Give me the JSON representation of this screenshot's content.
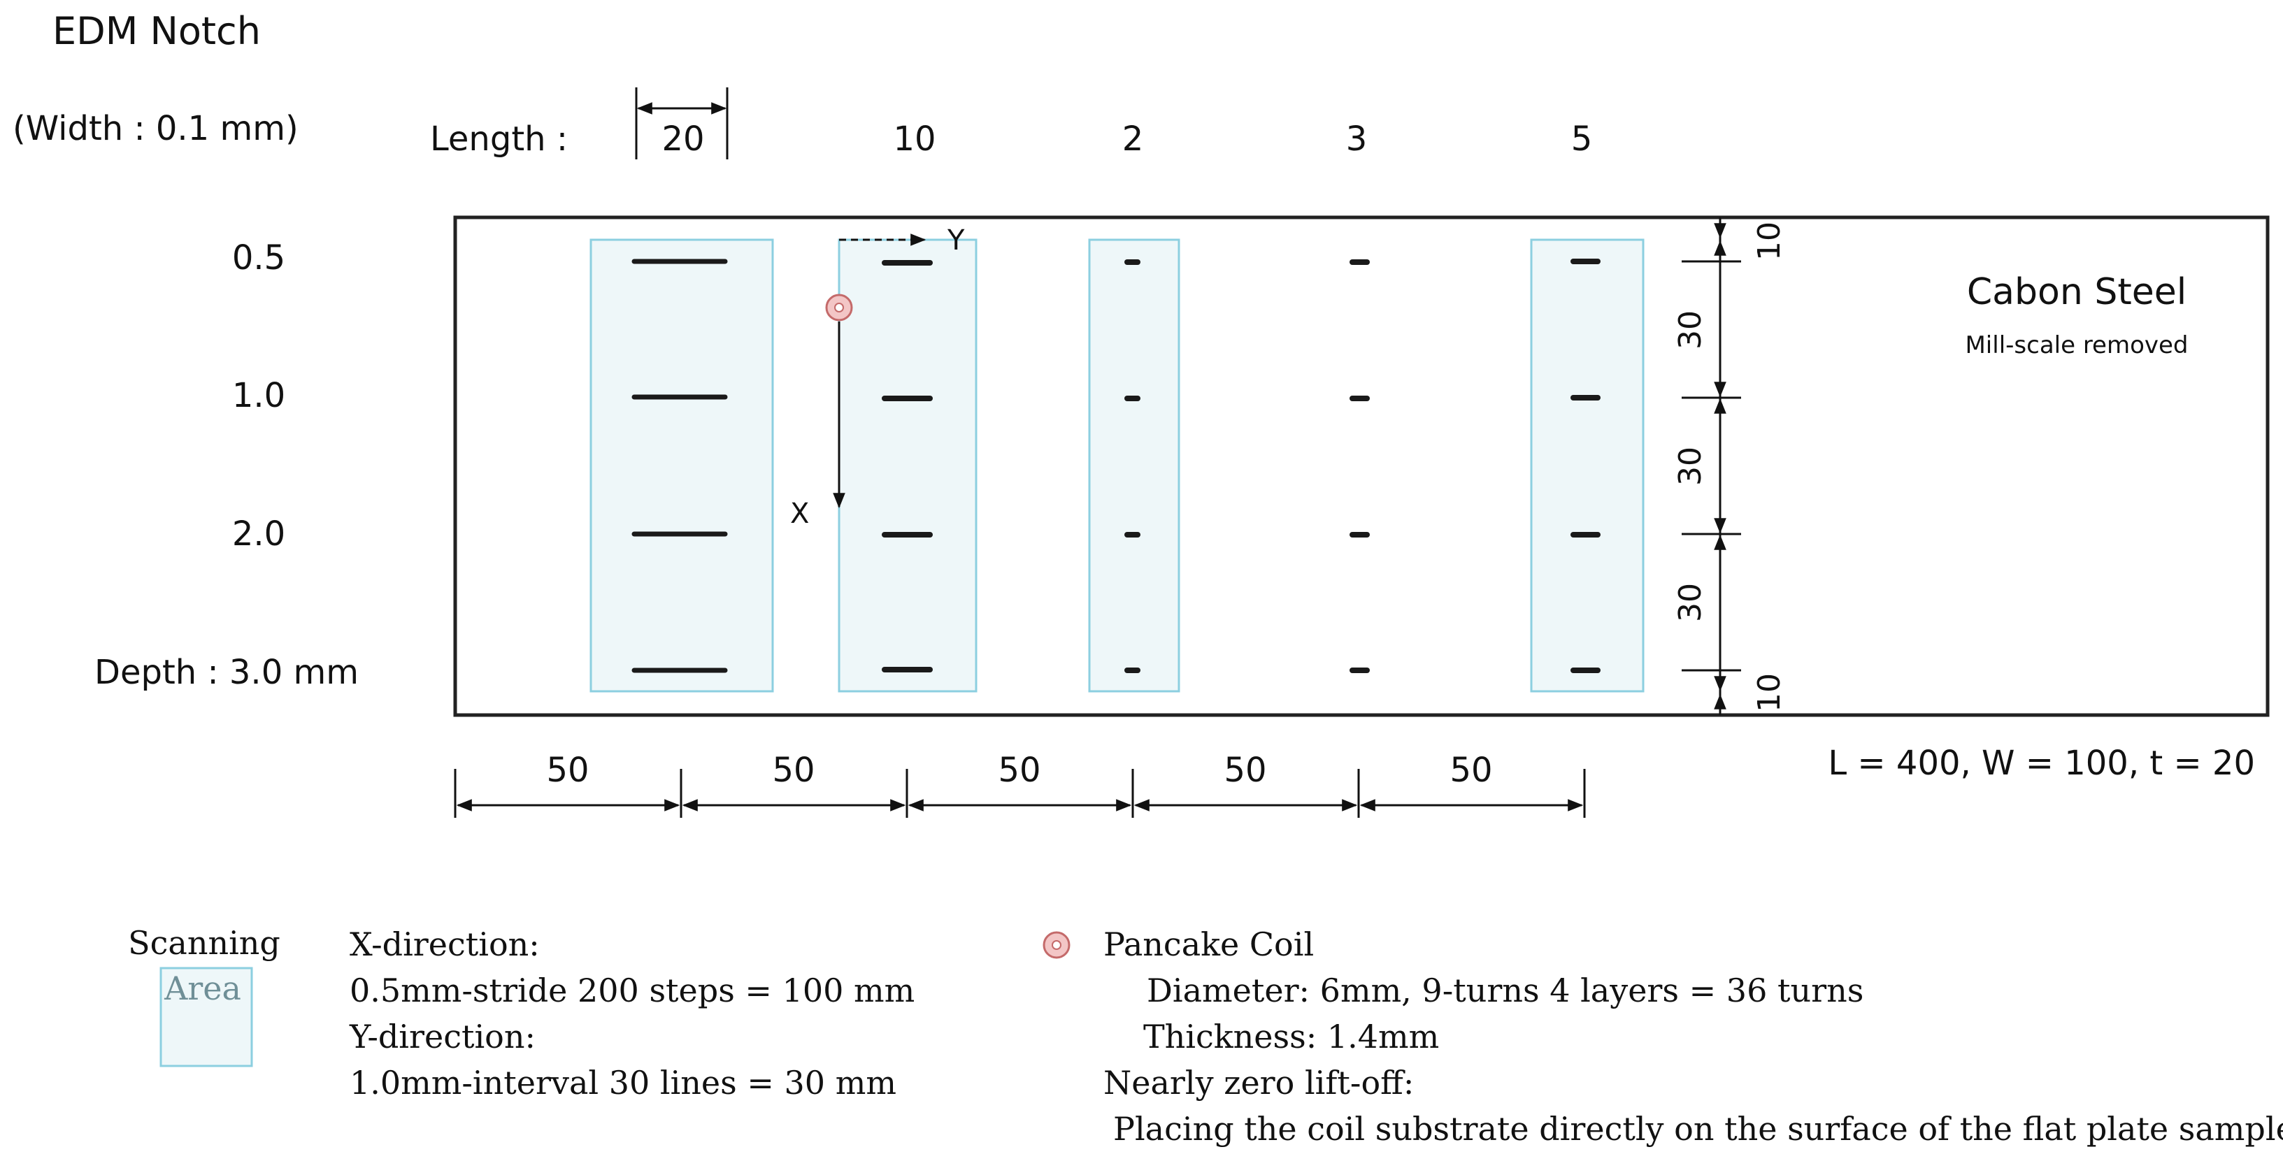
{
  "title": "EDM Notch",
  "width_note": "(Width : 0.1 mm)",
  "length_label": "Length :",
  "lengths": [
    "20",
    "10",
    "2",
    "3",
    "5"
  ],
  "depths": [
    "0.5",
    "1.0",
    "2.0",
    "Depth : 3.0 mm"
  ],
  "axes": {
    "x": "X",
    "y": "Y"
  },
  "material": {
    "name": "Cabon Steel",
    "note": "Mill-scale removed"
  },
  "vertical_dims": [
    "10",
    "30",
    "30",
    "30",
    "10"
  ],
  "horizontal_dims": [
    "50",
    "50",
    "50",
    "50",
    "50"
  ],
  "plate_size": "L = 400, W = 100,  t = 20",
  "legend": {
    "scanning": "Scanning",
    "area": "Area",
    "x_direction": "X-direction:",
    "x_detail": "0.5mm-stride 200 steps = 100 mm",
    "y_direction": "Y-direction:",
    "y_detail": "1.0mm-interval 30 lines = 30 mm",
    "coil_title": "Pancake Coil",
    "coil_diameter": "Diameter: 6mm,   9-turns 4 layers = 36 turns",
    "coil_thickness": "Thickness: 1.4mm",
    "liftoff": "Nearly zero lift-off:",
    "liftoff_detail": "Placing the coil substrate directly on the surface of the flat plate sample"
  },
  "colors": {
    "scan_fill": "#eef7f9",
    "scan_stroke": "#8ccfe0",
    "notch": "#1a1a1a",
    "coil": "#d98a8a"
  }
}
